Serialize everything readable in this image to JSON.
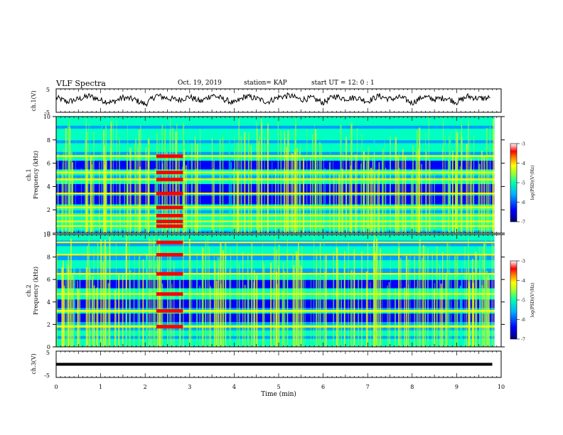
{
  "header": {
    "title": "VLF Spectra",
    "date": "Oct. 19, 2019",
    "station": "station= KAP",
    "start": "start  UT =   12: 0  : 1"
  },
  "chart_data": [
    {
      "type": "line",
      "ylabel": "ch.1(V)",
      "ylim": [
        -5,
        5
      ],
      "yticks": [
        "5",
        "-5"
      ],
      "x": [
        0,
        0.25,
        0.5,
        0.75,
        1.0,
        1.25,
        1.5,
        1.75,
        2.0,
        2.25,
        2.5,
        2.75,
        3.0,
        3.25,
        3.5,
        3.75,
        4.0,
        4.25,
        4.5,
        4.75,
        5.0,
        5.25,
        5.5,
        5.75,
        6.0,
        6.25,
        6.5,
        6.75,
        7.0,
        7.25,
        7.5,
        7.75,
        8.0,
        8.25,
        8.5,
        8.75,
        9.0,
        9.25,
        9.5,
        9.75
      ],
      "values": [
        1.2,
        -0.5,
        0.6,
        2.0,
        0.2,
        -0.8,
        1.3,
        0.5,
        -1.6,
        2.2,
        1.0,
        0.3,
        1.6,
        -0.4,
        2.4,
        0.7,
        -1.2,
        1.8,
        0.9,
        -0.6,
        1.5,
        2.1,
        0.4,
        1.1,
        -0.9,
        1.9,
        0.8,
        1.3,
        -0.3,
        2.0,
        0.6,
        1.4,
        -1.0,
        1.7,
        0.5,
        1.2,
        -0.7,
        1.8,
        0.9,
        1.1
      ]
    },
    {
      "type": "heatmap",
      "panel": "ch.1",
      "ylabel": "Frequency (kHz)",
      "channel": "ch.1",
      "ylim": [
        0,
        10
      ],
      "yticks": [
        "0",
        "2",
        "4",
        "6",
        "8",
        "10"
      ],
      "colorbar": {
        "label": "log(PSD)(V²/Hz)",
        "ticks": [
          "-3",
          "-4",
          "-5",
          "-6",
          "-7"
        ],
        "range": [
          -7,
          -3
        ]
      },
      "bright_bands_khz": [
        0.6,
        1.0,
        1.5,
        2.2,
        3.4,
        4.6,
        5.2,
        6.6
      ],
      "dark_bands_khz": [
        2.8,
        3.8,
        5.8
      ],
      "burst_window_min": [
        2.25,
        2.85
      ]
    },
    {
      "type": "heatmap",
      "panel": "ch.2",
      "ylabel": "Frequency (kHz)",
      "channel": "ch.2",
      "ylim": [
        0,
        10
      ],
      "yticks": [
        "0",
        "2",
        "4",
        "6",
        "8",
        "10"
      ],
      "colorbar": {
        "label": "log(PSD)(V²/Hz)",
        "ticks": [
          "-3",
          "-4",
          "-5",
          "-6",
          "-7"
        ],
        "range": [
          -7,
          -3
        ]
      },
      "bright_bands_khz": [
        1.8,
        3.2,
        4.7,
        6.5,
        8.2,
        9.3
      ],
      "dark_bands_khz": [
        2.5,
        3.8,
        5.5
      ],
      "burst_window_min": [
        2.25,
        2.85
      ]
    },
    {
      "type": "line",
      "ylabel": "ch.3(V)",
      "ylim": [
        -5,
        5
      ],
      "yticks": [
        "5",
        "-5"
      ],
      "x": [
        0,
        9.8
      ],
      "values": [
        0,
        0
      ]
    }
  ],
  "xaxis": {
    "label": "Time (min)",
    "ticks": [
      "0",
      "1",
      "2",
      "3",
      "4",
      "5",
      "6",
      "7",
      "8",
      "9",
      "10"
    ],
    "xlim": [
      0,
      10
    ]
  },
  "colors": {
    "colormap": [
      "#00007a",
      "#0000ff",
      "#00a0ff",
      "#00ffc0",
      "#80ff40",
      "#ffff00",
      "#ff8000",
      "#ff0000",
      "#ffffff"
    ],
    "trace": "#000000",
    "background": "#ffffff"
  }
}
